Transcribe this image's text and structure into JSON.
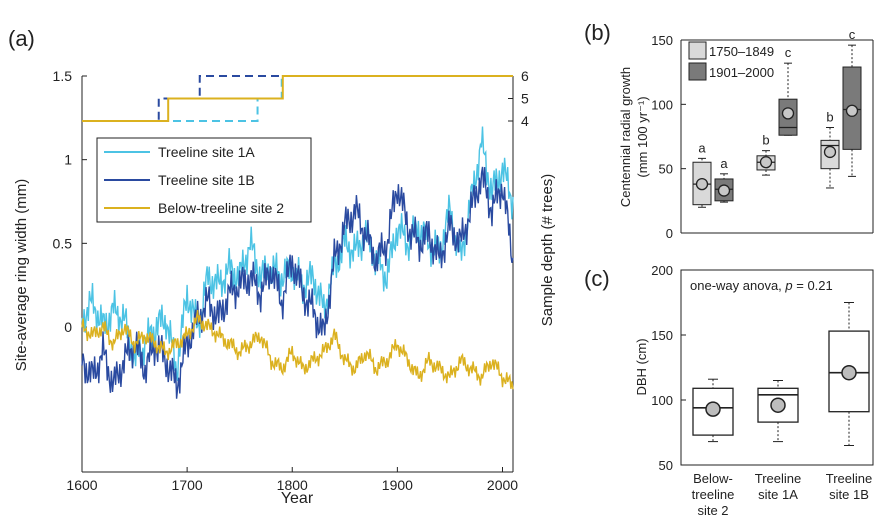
{
  "colors": {
    "site1A": "#4cc3e4",
    "site1B": "#2a4aa0",
    "site2": "#dbb11f",
    "period1": "#d9d9d9",
    "period2": "#7a7a7a",
    "axis": "#222222"
  },
  "chart_data": [
    {
      "panel_label": "(a)",
      "type": "line",
      "xlabel": "Year",
      "ylabel": "Site-average ring width (mm)",
      "y2label": "Sample depth (# trees)",
      "xlim": [
        1600,
        2010
      ],
      "ylim": [
        -0.65,
        1.5
      ],
      "xticks": [
        "1600",
        "1700",
        "1800",
        "1900",
        "2000"
      ],
      "yticks": [
        "0",
        "0.5",
        "1",
        "1.5"
      ],
      "y2ticks": [
        "4",
        "5",
        "6"
      ],
      "legend_position": "upper-left",
      "series": [
        {
          "name": "Treeline site 1A",
          "color_key": "site1A",
          "x": [
            1600,
            1610,
            1620,
            1630,
            1640,
            1650,
            1660,
            1670,
            1680,
            1690,
            1700,
            1710,
            1720,
            1730,
            1740,
            1750,
            1760,
            1770,
            1780,
            1790,
            1800,
            1810,
            1820,
            1830,
            1840,
            1850,
            1860,
            1870,
            1880,
            1890,
            1900,
            1910,
            1920,
            1930,
            1940,
            1950,
            1960,
            1970,
            1980,
            1990,
            2000,
            2010
          ],
          "y": [
            0.05,
            0.15,
            0.0,
            0.1,
            0.05,
            -0.2,
            -0.1,
            0.0,
            0.05,
            -0.25,
            0.2,
            0.0,
            0.3,
            0.25,
            0.35,
            0.3,
            0.5,
            0.3,
            0.35,
            0.3,
            0.35,
            0.25,
            0.3,
            0.1,
            0.35,
            0.5,
            0.45,
            0.55,
            0.4,
            0.3,
            0.6,
            0.5,
            0.6,
            0.5,
            0.45,
            0.7,
            0.4,
            0.75,
            1.1,
            0.8,
            0.95,
            0.75
          ]
        },
        {
          "name": "Treeline site 1B",
          "color_key": "site1B",
          "x": [
            1600,
            1610,
            1620,
            1630,
            1640,
            1650,
            1660,
            1670,
            1680,
            1690,
            1700,
            1710,
            1720,
            1730,
            1740,
            1750,
            1760,
            1770,
            1780,
            1790,
            1800,
            1810,
            1820,
            1830,
            1840,
            1850,
            1860,
            1870,
            1880,
            1890,
            1900,
            1910,
            1920,
            1930,
            1940,
            1950,
            1960,
            1970,
            1980,
            1990,
            2000,
            2010
          ],
          "y": [
            -0.2,
            -0.3,
            -0.15,
            -0.35,
            -0.2,
            -0.1,
            -0.25,
            -0.1,
            -0.2,
            -0.35,
            -0.1,
            0.05,
            0.15,
            0.05,
            0.2,
            0.25,
            0.3,
            0.2,
            0.35,
            0.15,
            0.4,
            0.2,
            0.1,
            -0.05,
            0.4,
            0.6,
            0.7,
            0.55,
            0.4,
            0.5,
            0.85,
            0.6,
            0.5,
            0.55,
            0.4,
            0.6,
            0.5,
            0.7,
            0.9,
            0.7,
            0.85,
            0.4
          ]
        },
        {
          "name": "Below-treeline site 2",
          "color_key": "site2",
          "x": [
            1600,
            1610,
            1620,
            1630,
            1640,
            1650,
            1660,
            1670,
            1680,
            1690,
            1700,
            1710,
            1720,
            1730,
            1740,
            1750,
            1760,
            1770,
            1780,
            1790,
            1800,
            1810,
            1820,
            1830,
            1840,
            1850,
            1860,
            1870,
            1880,
            1890,
            1900,
            1910,
            1920,
            1930,
            1940,
            1950,
            1960,
            1970,
            1980,
            1990,
            2000,
            2010
          ],
          "y": [
            0.0,
            -0.05,
            0.0,
            -0.1,
            0.0,
            -0.1,
            -0.05,
            -0.1,
            -0.15,
            -0.1,
            -0.05,
            0.05,
            0.0,
            -0.05,
            -0.1,
            -0.15,
            -0.1,
            -0.05,
            -0.2,
            -0.25,
            -0.15,
            -0.25,
            -0.2,
            -0.15,
            -0.05,
            -0.2,
            -0.25,
            -0.15,
            -0.25,
            -0.2,
            -0.1,
            -0.2,
            -0.3,
            -0.2,
            -0.25,
            -0.3,
            -0.2,
            -0.25,
            -0.3,
            -0.2,
            -0.3,
            -0.35
          ]
        }
      ],
      "sample_depth": [
        {
          "name": "Treeline site 1A",
          "color_key": "site1A",
          "dash": true,
          "steps": [
            [
              1600,
              4
            ],
            [
              1767,
              5
            ],
            [
              1790,
              6
            ],
            [
              2010,
              6
            ]
          ]
        },
        {
          "name": "Treeline site 1B",
          "color_key": "site1B",
          "dash": true,
          "steps": [
            [
              1600,
              4
            ],
            [
              1673,
              5
            ],
            [
              1712,
              6
            ],
            [
              2010,
              6
            ]
          ]
        },
        {
          "name": "Below-treeline site 2",
          "color_key": "site2",
          "dash": false,
          "steps": [
            [
              1600,
              4
            ],
            [
              1682,
              5
            ],
            [
              1791,
              6
            ],
            [
              2010,
              6
            ]
          ]
        }
      ]
    },
    {
      "panel_label": "(b)",
      "type": "box",
      "ylabel_line1": "Centennial radial growth",
      "ylabel_line2": "(mm 100 yr⁻¹)",
      "ylim": [
        0,
        150
      ],
      "yticks": [
        "0",
        "50",
        "100",
        "150"
      ],
      "legend": [
        {
          "label": "1750–1849",
          "color_key": "period1"
        },
        {
          "label": "1901–2000",
          "color_key": "period2"
        }
      ],
      "groups": [
        {
          "boxes": [
            {
              "period": "1750–1849",
              "min": 20,
              "q1": 22,
              "median": 38,
              "q3": 55,
              "max": 58,
              "mean": 38,
              "letter": "a"
            },
            {
              "period": "1901–2000",
              "min": 24,
              "q1": 25,
              "median": 34,
              "q3": 42,
              "max": 46,
              "mean": 33,
              "letter": "a"
            }
          ]
        },
        {
          "boxes": [
            {
              "period": "1750–1849",
              "min": 45,
              "q1": 49,
              "median": 55,
              "q3": 60,
              "max": 64,
              "mean": 55,
              "letter": "b"
            },
            {
              "period": "1901–2000",
              "min": 76,
              "q1": 76,
              "median": 82,
              "q3": 104,
              "max": 132,
              "mean": 93,
              "letter": "c"
            }
          ]
        },
        {
          "boxes": [
            {
              "period": "1750–1849",
              "min": 35,
              "q1": 50,
              "median": 68,
              "q3": 72,
              "max": 82,
              "mean": 63,
              "letter": "b"
            },
            {
              "period": "1901–2000",
              "min": 44,
              "q1": 65,
              "median": 96,
              "q3": 129,
              "max": 146,
              "mean": 95,
              "letter": "c"
            }
          ]
        }
      ]
    },
    {
      "panel_label": "(c)",
      "type": "box",
      "ylabel": "DBH (cm)",
      "ylim": [
        50,
        200
      ],
      "yticks": [
        "50",
        "100",
        "150",
        "200"
      ],
      "annotation_prefix": "one-way anova, ",
      "annotation_p": "p",
      "annotation_suffix": " = 0.21",
      "categories": [
        "Below-treeline site 2",
        "Treeline site 1A",
        "Treeline site 1B"
      ],
      "category_lines": [
        [
          "Below-",
          "treeline",
          "site 2"
        ],
        [
          "Treeline",
          "site 1A"
        ],
        [
          "Treeline",
          "site 1B"
        ]
      ],
      "boxes": [
        {
          "min": 68,
          "q1": 73,
          "median": 94,
          "q3": 109,
          "max": 116,
          "mean": 93
        },
        {
          "min": 68,
          "q1": 83,
          "median": 104,
          "q3": 109,
          "max": 115,
          "mean": 96
        },
        {
          "min": 65,
          "q1": 91,
          "median": 121,
          "q3": 153,
          "max": 175,
          "mean": 121
        }
      ]
    }
  ]
}
